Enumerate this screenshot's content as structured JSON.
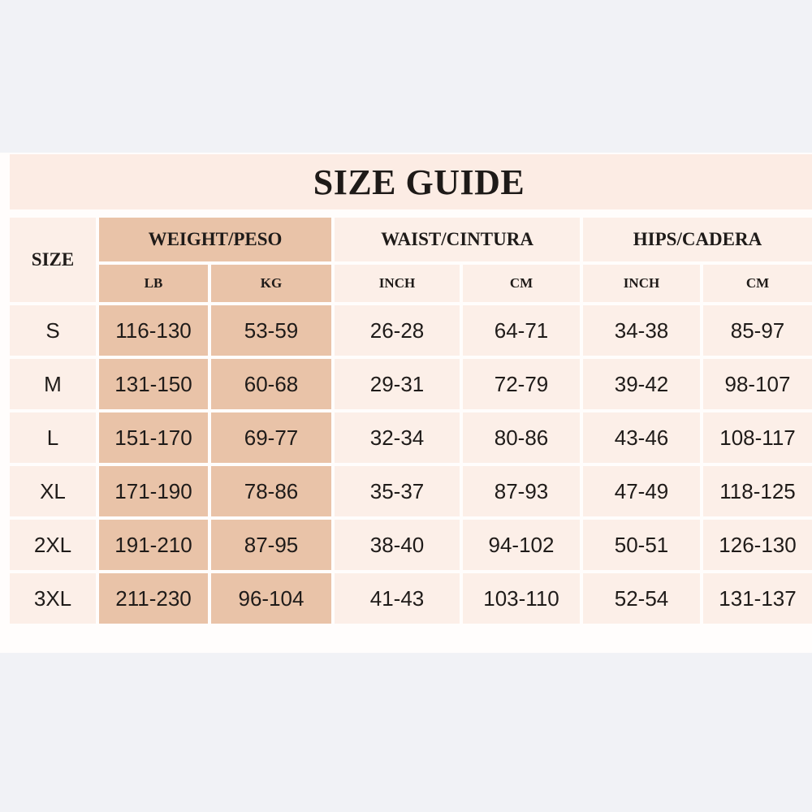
{
  "title": "SIZE GUIDE",
  "colors": {
    "weight_cell": "#e9c3a8",
    "cell": "#fcefe8",
    "title_band": "#fcece4",
    "background": "#f1f2f6"
  },
  "headers": {
    "size": "SIZE",
    "weight": "WEIGHT/PESO",
    "waist": "WAIST/CINTURA",
    "hips": "HIPS/CADERA",
    "weight_units": [
      "LB",
      "KG"
    ],
    "waist_units": [
      "INCH",
      "CM"
    ],
    "hips_units": [
      "INCH",
      "CM"
    ]
  },
  "rows": [
    {
      "size": "S",
      "lb": "116-130",
      "kg": "53-59",
      "waist_in": "26-28",
      "waist_cm": "64-71",
      "hips_in": "34-38",
      "hips_cm": "85-97"
    },
    {
      "size": "M",
      "lb": "131-150",
      "kg": "60-68",
      "waist_in": "29-31",
      "waist_cm": "72-79",
      "hips_in": "39-42",
      "hips_cm": "98-107"
    },
    {
      "size": "L",
      "lb": "151-170",
      "kg": "69-77",
      "waist_in": "32-34",
      "waist_cm": "80-86",
      "hips_in": "43-46",
      "hips_cm": "108-117"
    },
    {
      "size": "XL",
      "lb": "171-190",
      "kg": "78-86",
      "waist_in": "35-37",
      "waist_cm": "87-93",
      "hips_in": "47-49",
      "hips_cm": "118-125"
    },
    {
      "size": "2XL",
      "lb": "191-210",
      "kg": "87-95",
      "waist_in": "38-40",
      "waist_cm": "94-102",
      "hips_in": "50-51",
      "hips_cm": "126-130"
    },
    {
      "size": "3XL",
      "lb": "211-230",
      "kg": "96-104",
      "waist_in": "41-43",
      "waist_cm": "103-110",
      "hips_in": "52-54",
      "hips_cm": "131-137"
    }
  ]
}
